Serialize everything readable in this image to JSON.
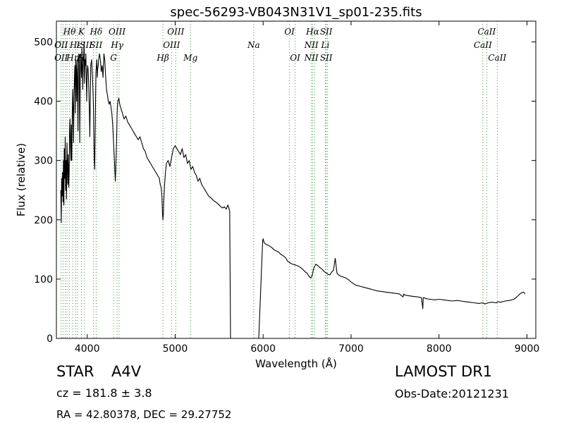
{
  "chart_data": {
    "type": "line",
    "title": "spec-56293-VB043N31V1_sp01-235.fits",
    "xlabel": "Wavelength (Å)",
    "ylabel": "Flux (relative)",
    "xlim": [
      3650,
      9100
    ],
    "ylim": [
      0,
      535
    ],
    "xticks": [
      4000,
      5000,
      6000,
      7000,
      8000,
      9000
    ],
    "yticks": [
      0,
      100,
      200,
      300,
      400,
      500
    ],
    "grid": false,
    "line_color": "#000000",
    "marker_color": "#2ca02c",
    "series": [
      {
        "x": [
          3700,
          3705,
          3710,
          3715,
          3720,
          3725,
          3730,
          3735,
          3740,
          3745,
          3750,
          3755,
          3760,
          3765,
          3770,
          3775,
          3780,
          3785,
          3790,
          3795,
          3800,
          3805,
          3810,
          3815,
          3820,
          3825,
          3830,
          3835,
          3840,
          3845,
          3850,
          3855,
          3860,
          3865,
          3870,
          3875,
          3880,
          3885,
          3890,
          3895,
          3900,
          3905,
          3910,
          3915,
          3920,
          3925,
          3930,
          3935,
          3940,
          3945,
          3950,
          3955,
          3960,
          3965,
          3970,
          3975,
          3980,
          3985,
          3990,
          3995,
          4000,
          4005,
          4010,
          4015,
          4020,
          4025,
          4030,
          4040,
          4050,
          4060,
          4070,
          4075,
          4080,
          4085,
          4090,
          4095,
          4100,
          4105,
          4110,
          4115,
          4120,
          4125,
          4130,
          4140,
          4150,
          4160,
          4170,
          4180,
          4190,
          4200,
          4210,
          4220,
          4230,
          4240,
          4250,
          4260,
          4270,
          4280,
          4290,
          4300,
          4310,
          4320,
          4330,
          4335,
          4340,
          4345,
          4350,
          4360,
          4370,
          4380,
          4390,
          4400,
          4420,
          4440,
          4460,
          4480,
          4500,
          4520,
          4540,
          4560,
          4580,
          4600,
          4620,
          4640,
          4660,
          4680,
          4700,
          4720,
          4740,
          4760,
          4780,
          4800,
          4820,
          4830,
          4840,
          4850,
          4855,
          4861,
          4866,
          4870,
          4880,
          4890,
          4900,
          4920,
          4940,
          4960,
          4980,
          5000,
          5020,
          5040,
          5060,
          5080,
          5100,
          5120,
          5140,
          5160,
          5180,
          5200,
          5220,
          5240,
          5260,
          5280,
          5300,
          5320,
          5340,
          5360,
          5380,
          5400,
          5420,
          5440,
          5460,
          5480,
          5500,
          5520,
          5540,
          5560,
          5580,
          5600,
          5620,
          5630,
          5640,
          5700,
          5800,
          5900,
          5950,
          5995,
          6000,
          6010,
          6020,
          6040,
          6060,
          6080,
          6100,
          6120,
          6140,
          6160,
          6180,
          6200,
          6220,
          6240,
          6260,
          6280,
          6300,
          6320,
          6340,
          6360,
          6380,
          6400,
          6420,
          6440,
          6460,
          6480,
          6500,
          6520,
          6540,
          6555,
          6563,
          6570,
          6580,
          6600,
          6620,
          6640,
          6660,
          6680,
          6700,
          6720,
          6740,
          6760,
          6780,
          6800,
          6820,
          6840,
          6850,
          6860,
          6870,
          6880,
          6900,
          6920,
          6940,
          6960,
          6980,
          7000,
          7050,
          7100,
          7150,
          7200,
          7250,
          7300,
          7350,
          7400,
          7450,
          7500,
          7550,
          7590,
          7600,
          7610,
          7650,
          7700,
          7750,
          7800,
          7815,
          7820,
          7825,
          7850,
          7900,
          7950,
          8000,
          8050,
          8100,
          8150,
          8200,
          8250,
          8300,
          8350,
          8400,
          8450,
          8500,
          8520,
          8540,
          8560,
          8600,
          8650,
          8670,
          8700,
          8750,
          8800,
          8850,
          8870,
          8900,
          8920,
          8940,
          8960,
          8980
        ],
        "y": [
          250,
          195,
          270,
          240,
          280,
          230,
          300,
          225,
          320,
          270,
          340,
          250,
          300,
          235,
          330,
          290,
          260,
          310,
          255,
          280,
          350,
          370,
          320,
          300,
          360,
          300,
          380,
          420,
          390,
          330,
          410,
          440,
          460,
          380,
          470,
          450,
          400,
          470,
          440,
          350,
          450,
          480,
          470,
          330,
          420,
          480,
          460,
          440,
          490,
          470,
          420,
          460,
          480,
          500,
          430,
          470,
          460,
          480,
          440,
          400,
          450,
          460,
          455,
          440,
          410,
          380,
          340,
          460,
          470,
          440,
          400,
          350,
          300,
          285,
          340,
          400,
          450,
          460,
          470,
          440,
          455,
          460,
          470,
          480,
          470,
          450,
          460,
          440,
          480,
          470,
          440,
          420,
          410,
          400,
          395,
          400,
          390,
          380,
          360,
          330,
          300,
          265,
          310,
          340,
          380,
          395,
          400,
          405,
          395,
          390,
          385,
          380,
          370,
          375,
          365,
          360,
          355,
          350,
          345,
          340,
          335,
          340,
          330,
          320,
          315,
          305,
          300,
          295,
          290,
          285,
          280,
          275,
          270,
          260,
          255,
          240,
          215,
          200,
          210,
          230,
          260,
          280,
          295,
          300,
          290,
          305,
          320,
          325,
          320,
          315,
          310,
          320,
          305,
          310,
          295,
          300,
          285,
          290,
          280,
          275,
          265,
          270,
          260,
          255,
          250,
          245,
          240,
          238,
          235,
          232,
          230,
          228,
          225,
          222,
          220,
          222,
          218,
          225,
          215,
          0,
          0,
          0,
          0,
          0,
          0,
          165,
          168,
          162,
          160,
          158,
          157,
          155,
          153,
          150,
          148,
          147,
          145,
          142,
          140,
          138,
          135,
          130,
          128,
          126,
          125,
          124,
          123,
          122,
          120,
          118,
          115,
          112,
          110,
          105,
          102,
          105,
          110,
          115,
          120,
          125,
          123,
          120,
          118,
          115,
          112,
          110,
          108,
          107,
          112,
          115,
          135,
          110,
          108,
          107,
          106,
          105,
          104,
          103,
          102,
          100,
          98,
          95,
          90,
          88,
          86,
          84,
          82,
          80,
          79,
          78,
          77,
          76,
          75,
          70,
          75,
          73,
          72,
          71,
          70,
          69,
          50,
          68,
          69,
          67,
          66,
          65,
          66,
          65,
          64,
          63,
          64,
          63,
          62,
          61,
          60,
          59,
          60,
          58,
          59,
          60,
          61,
          60,
          62,
          61,
          63,
          64,
          66,
          68,
          72,
          75,
          77,
          78,
          75
        ]
      }
    ],
    "lines": [
      {
        "x": 3704,
        "labels": [
          "",
          "OII",
          "OII"
        ]
      },
      {
        "x": 3726,
        "labels": [],
        "dup": true
      },
      {
        "x": 3750,
        "labels": []
      },
      {
        "x": 3771,
        "labels": []
      },
      {
        "x": 3798,
        "labels": [
          "Hθ",
          "",
          ""
        ]
      },
      {
        "x": 3835,
        "labels": [
          "",
          "",
          "Hη"
        ]
      },
      {
        "x": 3869,
        "labels": [
          "",
          "Hε",
          ""
        ]
      },
      {
        "x": 3889,
        "labels": []
      },
      {
        "x": 3934,
        "labels": [
          "K",
          "",
          "H"
        ]
      },
      {
        "x": 3969,
        "labels": [
          "",
          "ISII",
          ""
        ]
      },
      {
        "x": 4072,
        "labels": [
          "",
          "",
          ""
        ]
      },
      {
        "x": 4102,
        "labels": [
          "Hδ",
          "SII",
          ""
        ]
      },
      {
        "x": 4300,
        "labels": [
          "",
          "",
          "G"
        ]
      },
      {
        "x": 4340,
        "labels": [
          "OIII",
          "Hγ",
          ""
        ]
      },
      {
        "x": 4363,
        "labels": []
      },
      {
        "x": 4861,
        "labels": [
          "",
          "",
          "Hβ"
        ]
      },
      {
        "x": 4959,
        "labels": [
          "",
          "OIII",
          ""
        ]
      },
      {
        "x": 5007,
        "labels": [
          "OIII",
          "",
          ""
        ]
      },
      {
        "x": 5175,
        "labels": [
          "",
          "",
          "Mg"
        ]
      },
      {
        "x": 5893,
        "labels": [
          "",
          "Na",
          ""
        ]
      },
      {
        "x": 6300,
        "labels": [
          "OI",
          "",
          ""
        ]
      },
      {
        "x": 6364,
        "labels": [
          "",
          "",
          "OI"
        ]
      },
      {
        "x": 6548,
        "labels": [
          "",
          "NII",
          "NII"
        ]
      },
      {
        "x": 6563,
        "labels": [
          "Hα",
          "",
          ""
        ]
      },
      {
        "x": 6584,
        "labels": []
      },
      {
        "x": 6707,
        "labels": [
          "",
          "Li",
          ""
        ]
      },
      {
        "x": 6717,
        "labels": [
          "SII",
          "",
          "SII"
        ]
      },
      {
        "x": 6731,
        "labels": []
      },
      {
        "x": 8498,
        "labels": [
          "",
          "CaII",
          ""
        ]
      },
      {
        "x": 8542,
        "labels": [
          "CaII",
          "",
          ""
        ]
      },
      {
        "x": 8662,
        "labels": [
          "",
          "",
          "CaII"
        ]
      }
    ]
  },
  "info": {
    "class_label": "STAR",
    "subclass": "A4V",
    "cz_text": "cz = 181.8  ± 3.8",
    "radec_text": "RA = 42.80378, DEC = 29.27752",
    "survey": "LAMOST DR1",
    "obs_date": "Obs-Date:20121231"
  }
}
